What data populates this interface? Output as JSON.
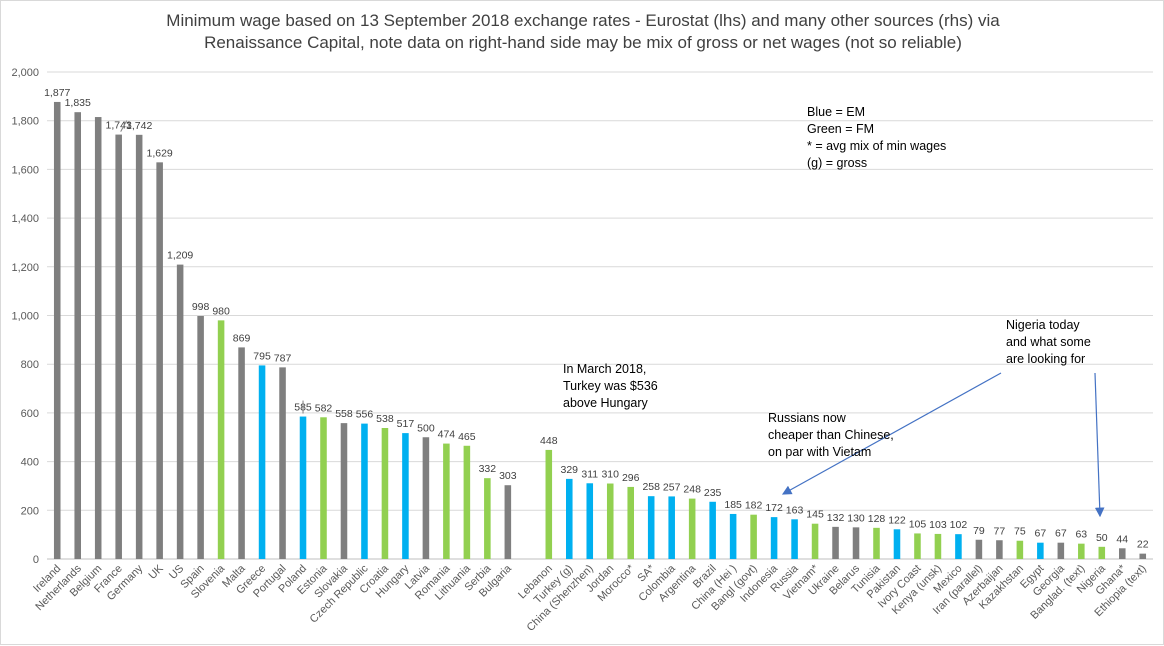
{
  "chart_data": {
    "type": "bar",
    "title_line1": "Minimum wage based on 13 September 2018 exchange rates - Eurostat (lhs) and many other sources (rhs) via",
    "title_line2": "Renaissance Capital, note data on right-hand side may be mix of gross or net wages (not so reliable)",
    "ylim": [
      0,
      2000
    ],
    "yticks": [
      "0",
      "200",
      "400",
      "600",
      "800",
      "1,000",
      "1,200",
      "1,400",
      "1,600",
      "1,800",
      "2,000"
    ],
    "grid": true,
    "colors": {
      "gray": "#7f7f7f",
      "blue": "#00b0f0",
      "green": "#92d050"
    },
    "groups": [
      {
        "categories": [
          "Ireland",
          "Netherlands",
          "Belgium",
          "France",
          "Germany",
          "UK",
          "US",
          "Spain",
          "Slovenia",
          "Malta",
          "Greece",
          "Portugal",
          "Poland",
          "Estonia",
          "Slovakia",
          "Czech Republic",
          "Croatia",
          "Hungary",
          "Latvia",
          "Romania",
          "Lithuania",
          "Serbia",
          "Bulgaria"
        ],
        "values": [
          1877,
          1835,
          1815,
          1743,
          1742,
          1629,
          1209,
          998,
          980,
          869,
          795,
          787,
          585,
          582,
          558,
          556,
          538,
          517,
          500,
          474,
          465,
          332,
          303
        ],
        "labels": [
          "1,877",
          "1,835",
          "",
          "1,743",
          "1,742",
          "1,629",
          "1,209",
          "998",
          "980",
          "869",
          "795",
          "787",
          "585",
          "582",
          "558",
          "556",
          "538",
          "517",
          "500",
          "474",
          "465",
          "332",
          "303"
        ],
        "colors": [
          "gray",
          "gray",
          "gray",
          "gray",
          "gray",
          "gray",
          "gray",
          "gray",
          "green",
          "gray",
          "blue",
          "gray",
          "blue",
          "green",
          "gray",
          "blue",
          "green",
          "blue",
          "gray",
          "green",
          "green",
          "green",
          "gray"
        ]
      },
      {
        "categories": [
          "Lebanon",
          "Turkey (g)",
          "China (Shenzhen)",
          "Jordan",
          "Morocco*",
          "SA*",
          "Colombia",
          "Argentina",
          "Brazil",
          "China (Hei )",
          "Bangl (govt)",
          "Indonesia",
          "Russia",
          "Vietnam*",
          "Ukraine",
          "Belarus",
          "Tunisia",
          "Pakistan",
          "Ivory Coast",
          "Kenya (unsk)",
          "Mexico",
          "Iran (parallel)",
          "Azerbaijan",
          "Kazakhstan",
          "Egypt",
          "Georgia",
          "Banglad. (text)",
          "Nigeria",
          "Ghana*",
          "Ethiopia (text)"
        ],
        "values": [
          448,
          329,
          311,
          310,
          296,
          258,
          257,
          248,
          235,
          185,
          182,
          172,
          163,
          145,
          132,
          130,
          128,
          122,
          105,
          103,
          102,
          79,
          77,
          75,
          67,
          67,
          63,
          50,
          44,
          22
        ],
        "labels": [
          "448",
          "329",
          "311",
          "310",
          "296",
          "258",
          "257",
          "248",
          "235",
          "185",
          "182",
          "172",
          "163",
          "145",
          "132",
          "130",
          "128",
          "122",
          "105",
          "103",
          "102",
          "79",
          "77",
          "75",
          "67",
          "67",
          "63",
          "50",
          "44",
          "22"
        ],
        "colors": [
          "green",
          "blue",
          "blue",
          "green",
          "green",
          "blue",
          "blue",
          "green",
          "blue",
          "blue",
          "green",
          "blue",
          "blue",
          "green",
          "gray",
          "gray",
          "green",
          "blue",
          "green",
          "green",
          "blue",
          "gray",
          "gray",
          "green",
          "blue",
          "gray",
          "green",
          "green",
          "gray",
          "gray"
        ]
      }
    ]
  },
  "legend_note": {
    "lines": [
      "Blue = EM",
      "Green = FM",
      "* = avg mix of min wages",
      "(g) = gross"
    ]
  },
  "annotations": {
    "turkey": [
      "In March 2018,",
      "Turkey was $536",
      "above Hungary"
    ],
    "russia": [
      "Russians now",
      "cheaper than Chinese,",
      "on par with Vietam"
    ],
    "nigeria": [
      "Nigeria today",
      "and what some",
      "are looking for"
    ]
  }
}
